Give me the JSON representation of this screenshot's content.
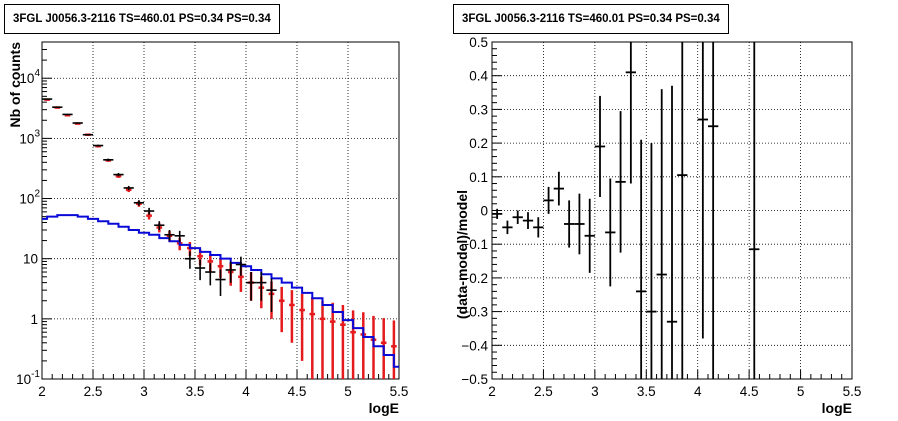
{
  "colors": {
    "data": "#000000",
    "model": "#e41a1c",
    "source": "#0a0ad8",
    "grid": "#000000"
  },
  "panels": [
    {
      "title": "3FGL J0056.3-2116 TS=460.01 PS=0.34 PS=0.34"
    },
    {
      "title": "3FGL J0056.3-2116 TS=460.01 PS=0.34 PS=0.34"
    }
  ],
  "chart_data": [
    {
      "type": "scatter",
      "title": "3FGL J0056.3-2116 TS=460.01 PS=0.34 PS=0.34",
      "xlabel": "logE",
      "ylabel": "Nb of counts",
      "xlim": [
        2,
        5.5
      ],
      "ylim": [
        0.1,
        40000
      ],
      "yscale": "log",
      "grid": true,
      "xticks": [
        "2",
        "2.5",
        "3",
        "3.5",
        "4",
        "4.5",
        "5",
        "5.5"
      ],
      "yticks": [
        {
          "value": 0.1,
          "base": "10",
          "exp": "-1"
        },
        {
          "value": 1,
          "base": "1",
          "exp": ""
        },
        {
          "value": 10,
          "base": "10",
          "exp": ""
        },
        {
          "value": 100,
          "base": "10",
          "exp": "2"
        },
        {
          "value": 1000,
          "base": "10",
          "exp": "3"
        },
        {
          "value": 10000,
          "base": "10",
          "exp": "4"
        }
      ],
      "bin_half_width": 0.05,
      "series": [
        {
          "kind": "data",
          "x": [
            2.05,
            2.15,
            2.25,
            2.35,
            2.45,
            2.55,
            2.65,
            2.75,
            2.85,
            2.95,
            3.05,
            3.15,
            3.25,
            3.35,
            3.45,
            3.55,
            3.65,
            3.75,
            3.85,
            3.95,
            4.05,
            4.15,
            4.25,
            4.35,
            4.45,
            4.55,
            4.65,
            4.75,
            4.85,
            4.95,
            5.05,
            5.15,
            5.25,
            5.35,
            5.45
          ],
          "y": [
            4500,
            3300,
            2500,
            1800,
            1150,
            760,
            440,
            250,
            150,
            85,
            62,
            36,
            25,
            24,
            10,
            7,
            6,
            4.5,
            6.5,
            8,
            4,
            4,
            3,
            null,
            null,
            null,
            null,
            null,
            null,
            null,
            null,
            null,
            null,
            null,
            null
          ],
          "err": [
            70,
            57,
            50,
            43,
            34,
            28,
            21,
            16,
            12,
            9,
            8,
            6,
            5,
            5,
            3.2,
            2.6,
            2.4,
            2.1,
            2.5,
            2.8,
            2,
            2,
            1.7,
            null,
            null,
            null,
            null,
            null,
            null,
            null,
            null,
            null,
            null,
            null,
            null
          ]
        },
        {
          "kind": "model",
          "x": [
            2.05,
            2.15,
            2.25,
            2.35,
            2.45,
            2.55,
            2.65,
            2.75,
            2.85,
            2.95,
            3.05,
            3.15,
            3.25,
            3.35,
            3.45,
            3.55,
            3.65,
            3.75,
            3.85,
            3.95,
            4.05,
            4.15,
            4.25,
            4.35,
            4.45,
            4.55,
            4.65,
            4.75,
            4.85,
            4.95,
            5.05,
            5.15,
            5.25,
            5.35,
            5.45
          ],
          "y": [
            4400,
            3250,
            2420,
            1760,
            1150,
            740,
            430,
            235,
            140,
            82,
            52,
            33,
            24,
            18,
            15,
            11,
            9,
            7.5,
            6,
            5,
            4,
            3.3,
            2.6,
            2,
            1.7,
            1.4,
            1.2,
            1,
            0.9,
            0.8,
            0.6,
            0.55,
            0.45,
            0.4,
            0.35
          ],
          "err": [
            66,
            57,
            49,
            42,
            34,
            27,
            21,
            15,
            12,
            9,
            7.2,
            5.7,
            4.9,
            4.2,
            3.9,
            3.3,
            3,
            2.7,
            2.45,
            2.2,
            2,
            1.8,
            1.6,
            1.4,
            1.3,
            1.2,
            1.1,
            1,
            0.95,
            0.9,
            0.78,
            0.74,
            0.67,
            0.63,
            0.59
          ]
        },
        {
          "kind": "source",
          "x": [
            2.0,
            2.1,
            2.2,
            2.3,
            2.4,
            2.5,
            2.6,
            2.7,
            2.8,
            2.9,
            3.0,
            3.1,
            3.2,
            3.3,
            3.4,
            3.5,
            3.6,
            3.7,
            3.8,
            3.9,
            4.0,
            4.1,
            4.2,
            4.3,
            4.4,
            4.5,
            4.6,
            4.7,
            4.8,
            4.9,
            5.0,
            5.1,
            5.2,
            5.3,
            5.4,
            5.5
          ],
          "y": [
            46,
            50,
            53,
            53,
            50,
            46,
            42,
            38,
            34,
            30,
            27,
            25,
            22,
            19.5,
            17,
            15,
            13,
            11.5,
            10,
            8.5,
            7.5,
            6.5,
            5.5,
            4.7,
            4,
            3.3,
            2.7,
            2.2,
            1.7,
            1.3,
            0.95,
            0.7,
            0.5,
            0.35,
            0.25,
            0.16
          ]
        }
      ]
    },
    {
      "type": "scatter",
      "title": "3FGL J0056.3-2116 TS=460.01 PS=0.34 PS=0.34",
      "xlabel": "logE",
      "ylabel": "(data-model)/model",
      "xlim": [
        2,
        5.5
      ],
      "ylim": [
        -0.5,
        0.5
      ],
      "grid": true,
      "xticks": [
        "2",
        "2.5",
        "3",
        "3.5",
        "4",
        "4.5",
        "5",
        "5.5"
      ],
      "yticks": [
        "−0.5",
        "−0.4",
        "−0.3",
        "−0.2",
        "−0.1",
        "0",
        "0.1",
        "0.2",
        "0.3",
        "0.4",
        "0.5"
      ],
      "bin_half_width": 0.05,
      "series": [
        {
          "kind": "residual",
          "x": [
            2.05,
            2.15,
            2.25,
            2.35,
            2.45,
            2.55,
            2.65,
            2.75,
            2.85,
            2.95,
            3.05,
            3.15,
            3.25,
            3.35,
            3.45,
            3.55,
            3.65,
            3.75,
            3.85,
            4.05,
            4.15,
            4.55
          ],
          "y": [
            -0.01,
            -0.05,
            -0.02,
            -0.03,
            -0.05,
            0.03,
            0.065,
            -0.04,
            -0.04,
            -0.075,
            0.19,
            -0.065,
            0.085,
            0.41,
            -0.24,
            -0.3,
            -0.19,
            -0.33,
            0.105,
            0.27,
            0.25,
            -0.115
          ],
          "err": [
            0.015,
            0.02,
            0.02,
            0.025,
            0.03,
            0.04,
            0.05,
            0.07,
            0.09,
            0.11,
            0.15,
            0.16,
            0.21,
            0.33,
            0.45,
            0.5,
            0.55,
            0.7,
            0.8,
            0.65,
            0.75,
            0.9
          ]
        }
      ]
    }
  ]
}
